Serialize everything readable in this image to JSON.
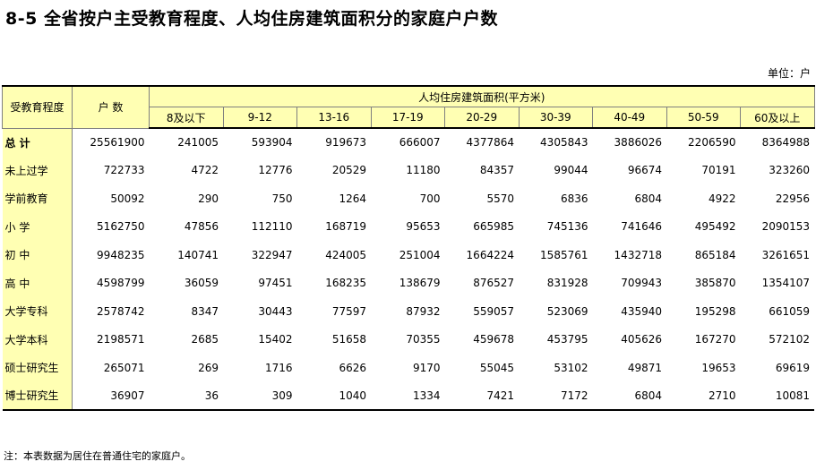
{
  "title": "8-5  全省按户主受教育程度、人均住房建筑面积分的家庭户户数",
  "unit": "单位：户",
  "header": {
    "edu": "受教育程度",
    "households": "户    数",
    "area_group": "人均住房建筑面积(平方米)",
    "area_ranges": [
      "8及以下",
      "9-12",
      "13-16",
      "17-19",
      "20-29",
      "30-39",
      "40-49",
      "50-59",
      "60及以上"
    ]
  },
  "rows": [
    {
      "label": "总    计",
      "values": [
        "25561900",
        "241005",
        "593904",
        "919673",
        "666007",
        "4377864",
        "4305843",
        "3886026",
        "2206590",
        "8364988"
      ]
    },
    {
      "label": "未上过学",
      "values": [
        "722733",
        "4722",
        "12776",
        "20529",
        "11180",
        "84357",
        "99044",
        "96674",
        "70191",
        "323260"
      ]
    },
    {
      "label": "学前教育",
      "values": [
        "50092",
        "290",
        "750",
        "1264",
        "700",
        "5570",
        "6836",
        "6804",
        "4922",
        "22956"
      ]
    },
    {
      "label": "小    学",
      "values": [
        "5162750",
        "47856",
        "112110",
        "168719",
        "95653",
        "665985",
        "745136",
        "741646",
        "495492",
        "2090153"
      ]
    },
    {
      "label": "初    中",
      "values": [
        "9948235",
        "140741",
        "322947",
        "424005",
        "251004",
        "1664224",
        "1585761",
        "1432718",
        "865184",
        "3261651"
      ]
    },
    {
      "label": "高    中",
      "values": [
        "4598799",
        "36059",
        "97451",
        "168235",
        "138679",
        "876527",
        "831928",
        "709943",
        "385870",
        "1354107"
      ]
    },
    {
      "label": "大学专科",
      "values": [
        "2578742",
        "8347",
        "30443",
        "77597",
        "87932",
        "559057",
        "523069",
        "435940",
        "195298",
        "661059"
      ]
    },
    {
      "label": "大学本科",
      "values": [
        "2198571",
        "2685",
        "15402",
        "51658",
        "70355",
        "459678",
        "453795",
        "405626",
        "167270",
        "572102"
      ]
    },
    {
      "label": "硕士研究生",
      "values": [
        "265071",
        "269",
        "1716",
        "6626",
        "9170",
        "55045",
        "53102",
        "49871",
        "19653",
        "69619"
      ]
    },
    {
      "label": "博士研究生",
      "values": [
        "36907",
        "36",
        "309",
        "1040",
        "1334",
        "7421",
        "7172",
        "6804",
        "2710",
        "10081"
      ]
    }
  ],
  "note": "注：本表数据为居住在普通住宅的家庭户。"
}
